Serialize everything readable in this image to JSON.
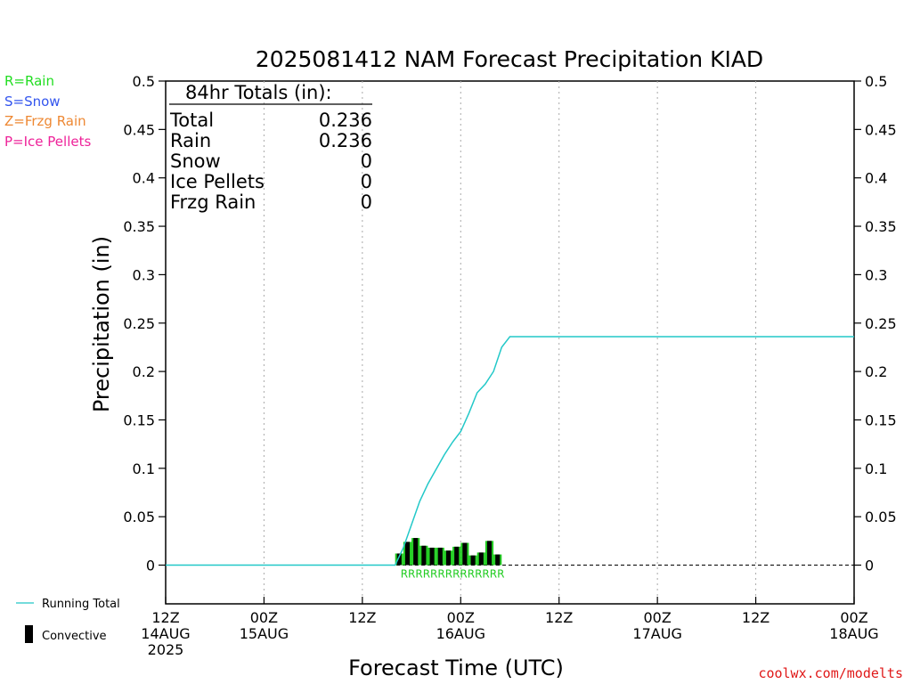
{
  "legend": {
    "items": [
      {
        "text": "R=Rain",
        "color": "#22dd22"
      },
      {
        "text": "S=Snow",
        "color": "#3355ee"
      },
      {
        "text": "Z=Frzg Rain",
        "color": "#ee8833"
      },
      {
        "text": "P=Ice Pellets",
        "color": "#ee2299"
      }
    ],
    "running_total": "Running Total",
    "convective": "Convective"
  },
  "totals": {
    "header": "84hr Totals (in):",
    "rows": [
      {
        "label": "Total",
        "value": "0.236"
      },
      {
        "label": "Rain",
        "value": "0.236"
      },
      {
        "label": "Snow",
        "value": "0"
      },
      {
        "label": "Ice Pellets",
        "value": "0"
      },
      {
        "label": "Frzg Rain",
        "value": "0"
      }
    ]
  },
  "credit": "coolwx.com/modelts",
  "colors": {
    "running_total": "#22c8c8",
    "bar_rain": "#22cc22",
    "bar_convective": "#000000",
    "grid": "#aaaaaa"
  },
  "chart_data": {
    "type": "bar",
    "title": "2025081412 NAM Forecast Precipitation KIAD",
    "xlabel": "Forecast Time (UTC)",
    "ylabel": "Precipitation (in)",
    "x_unit": "forecast hour",
    "xlim": [
      0,
      84
    ],
    "ylim": [
      -0.04,
      0.5
    ],
    "y_ticks": [
      0,
      0.05,
      0.1,
      0.15,
      0.2,
      0.25,
      0.3,
      0.35,
      0.4,
      0.45,
      0.5
    ],
    "y_tick_labels": [
      "0",
      "0.05",
      "0.1",
      "0.15",
      "0.2",
      "0.25",
      "0.3",
      "0.35",
      "0.4",
      "0.45",
      "0.5"
    ],
    "x_ticks": [
      {
        "hour": 0,
        "lines": [
          "12Z",
          "14AUG",
          "2025"
        ]
      },
      {
        "hour": 12,
        "lines": [
          "00Z",
          "15AUG"
        ]
      },
      {
        "hour": 24,
        "lines": [
          "12Z"
        ]
      },
      {
        "hour": 36,
        "lines": [
          "00Z",
          "16AUG"
        ]
      },
      {
        "hour": 48,
        "lines": [
          "12Z"
        ]
      },
      {
        "hour": 60,
        "lines": [
          "00Z",
          "17AUG"
        ]
      },
      {
        "hour": 72,
        "lines": [
          "12Z"
        ]
      },
      {
        "hour": 84,
        "lines": [
          "00Z",
          "18AUG"
        ]
      }
    ],
    "grid": "vertical dotted",
    "bars": {
      "hours": [
        29,
        30,
        31,
        32,
        33,
        34,
        35,
        36,
        37,
        38,
        39,
        40,
        41,
        42
      ],
      "total": [
        0.012,
        0.024,
        0.028,
        0.02,
        0.018,
        0.018,
        0.015,
        0.019,
        0.023,
        0.01,
        0.013,
        0.025,
        0.011,
        0
      ],
      "convective": [
        0.012,
        0.024,
        0.028,
        0.02,
        0.018,
        0.018,
        0.015,
        0.019,
        0.023,
        0.01,
        0.013,
        0.025,
        0.011,
        0
      ],
      "ptype_label": "RRRRRRRRRRRRRR"
    },
    "series": [
      {
        "name": "Running Total",
        "x": [
          0,
          28,
          29,
          30,
          31,
          32,
          33,
          34,
          35,
          36,
          37,
          38,
          39,
          40,
          41,
          42,
          84
        ],
        "y": [
          0,
          0,
          0.018,
          0.042,
          0.066,
          0.084,
          0.099,
          0.114,
          0.127,
          0.138,
          0.157,
          0.178,
          0.187,
          0.2,
          0.225,
          0.236,
          0.236
        ]
      }
    ]
  }
}
